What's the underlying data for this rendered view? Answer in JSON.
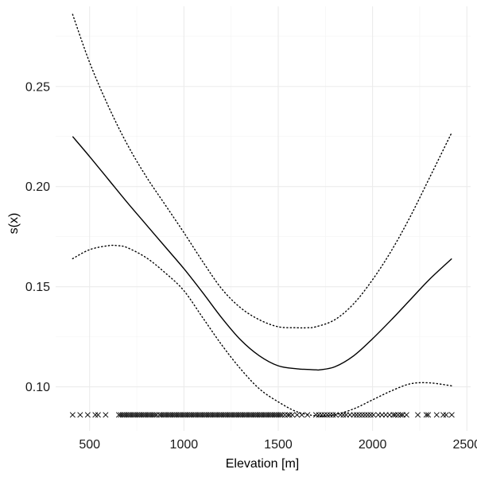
{
  "chart_data": {
    "type": "line",
    "xlabel": "Elevation [m]",
    "ylabel": "s(x)",
    "xlim": [
      320,
      2520
    ],
    "ylim": [
      0.078,
      0.29
    ],
    "x_ticks": [
      500,
      1000,
      1500,
      2000,
      2500
    ],
    "x_tick_labels": [
      "500",
      "1000",
      "1500",
      "2000",
      "2500"
    ],
    "y_ticks": [
      0.1,
      0.15,
      0.2,
      0.25
    ],
    "y_tick_labels": [
      "0.10",
      "0.15",
      "0.20",
      "0.25"
    ],
    "grid": true,
    "series": [
      {
        "role": "fit",
        "style": "solid",
        "x": [
          410,
          500,
          600,
          700,
          800,
          900,
          1000,
          1100,
          1200,
          1300,
          1400,
          1500,
          1600,
          1700,
          1720,
          1800,
          1900,
          2000,
          2100,
          2200,
          2300,
          2420
        ],
        "y": [
          0.225,
          0.215,
          0.2035,
          0.192,
          0.181,
          0.17,
          0.159,
          0.147,
          0.1345,
          0.1235,
          0.1155,
          0.1105,
          0.109,
          0.1085,
          0.1085,
          0.11,
          0.1155,
          0.124,
          0.1335,
          0.1435,
          0.1535,
          0.164
        ]
      },
      {
        "role": "upper-ci",
        "style": "dotted",
        "x": [
          410,
          500,
          600,
          700,
          800,
          900,
          1000,
          1100,
          1200,
          1300,
          1400,
          1500,
          1600,
          1650,
          1700,
          1800,
          1900,
          2000,
          2100,
          2200,
          2300,
          2420
        ],
        "y": [
          0.286,
          0.262,
          0.24,
          0.221,
          0.205,
          0.191,
          0.177,
          0.1625,
          0.149,
          0.1395,
          0.1335,
          0.13,
          0.1295,
          0.1295,
          0.13,
          0.1335,
          0.1415,
          0.1535,
          0.168,
          0.185,
          0.204,
          0.227
        ]
      },
      {
        "role": "lower-ci",
        "style": "dotted",
        "x": [
          410,
          500,
          600,
          650,
          700,
          800,
          900,
          1000,
          1100,
          1200,
          1300,
          1400,
          1500,
          1600,
          1700,
          1750,
          1800,
          1900,
          2000,
          2100,
          2200,
          2300,
          2420
        ],
        "y": [
          0.164,
          0.1685,
          0.1705,
          0.1705,
          0.1695,
          0.1645,
          0.157,
          0.148,
          0.1345,
          0.121,
          0.109,
          0.099,
          0.0925,
          0.0875,
          0.0855,
          0.0855,
          0.086,
          0.089,
          0.0935,
          0.098,
          0.1015,
          0.102,
          0.1005
        ]
      }
    ],
    "rug": {
      "y": 0.086,
      "marker": "x",
      "x": [
        410,
        450,
        490,
        530,
        545,
        585,
        655,
        665,
        675,
        685,
        695,
        705,
        715,
        725,
        735,
        745,
        755,
        765,
        775,
        785,
        795,
        805,
        815,
        825,
        835,
        845,
        855,
        870,
        880,
        890,
        900,
        910,
        920,
        930,
        940,
        950,
        960,
        970,
        980,
        990,
        1000,
        1010,
        1020,
        1030,
        1040,
        1050,
        1060,
        1070,
        1080,
        1090,
        1100,
        1110,
        1120,
        1130,
        1140,
        1150,
        1160,
        1170,
        1180,
        1190,
        1200,
        1210,
        1220,
        1230,
        1240,
        1250,
        1260,
        1270,
        1280,
        1290,
        1300,
        1310,
        1320,
        1330,
        1340,
        1350,
        1360,
        1370,
        1380,
        1390,
        1400,
        1410,
        1420,
        1430,
        1440,
        1450,
        1460,
        1470,
        1480,
        1490,
        1500,
        1510,
        1520,
        1535,
        1550,
        1560,
        1575,
        1600,
        1625,
        1655,
        1700,
        1715,
        1730,
        1745,
        1760,
        1775,
        1790,
        1805,
        1830,
        1845,
        1860,
        1880,
        1900,
        1915,
        1930,
        1945,
        1960,
        1975,
        1990,
        2005,
        2030,
        2050,
        2070,
        2090,
        2110,
        2120,
        2135,
        2150,
        2160,
        2180,
        2240,
        2285,
        2295,
        2340,
        2375,
        2390,
        2420
      ]
    }
  }
}
